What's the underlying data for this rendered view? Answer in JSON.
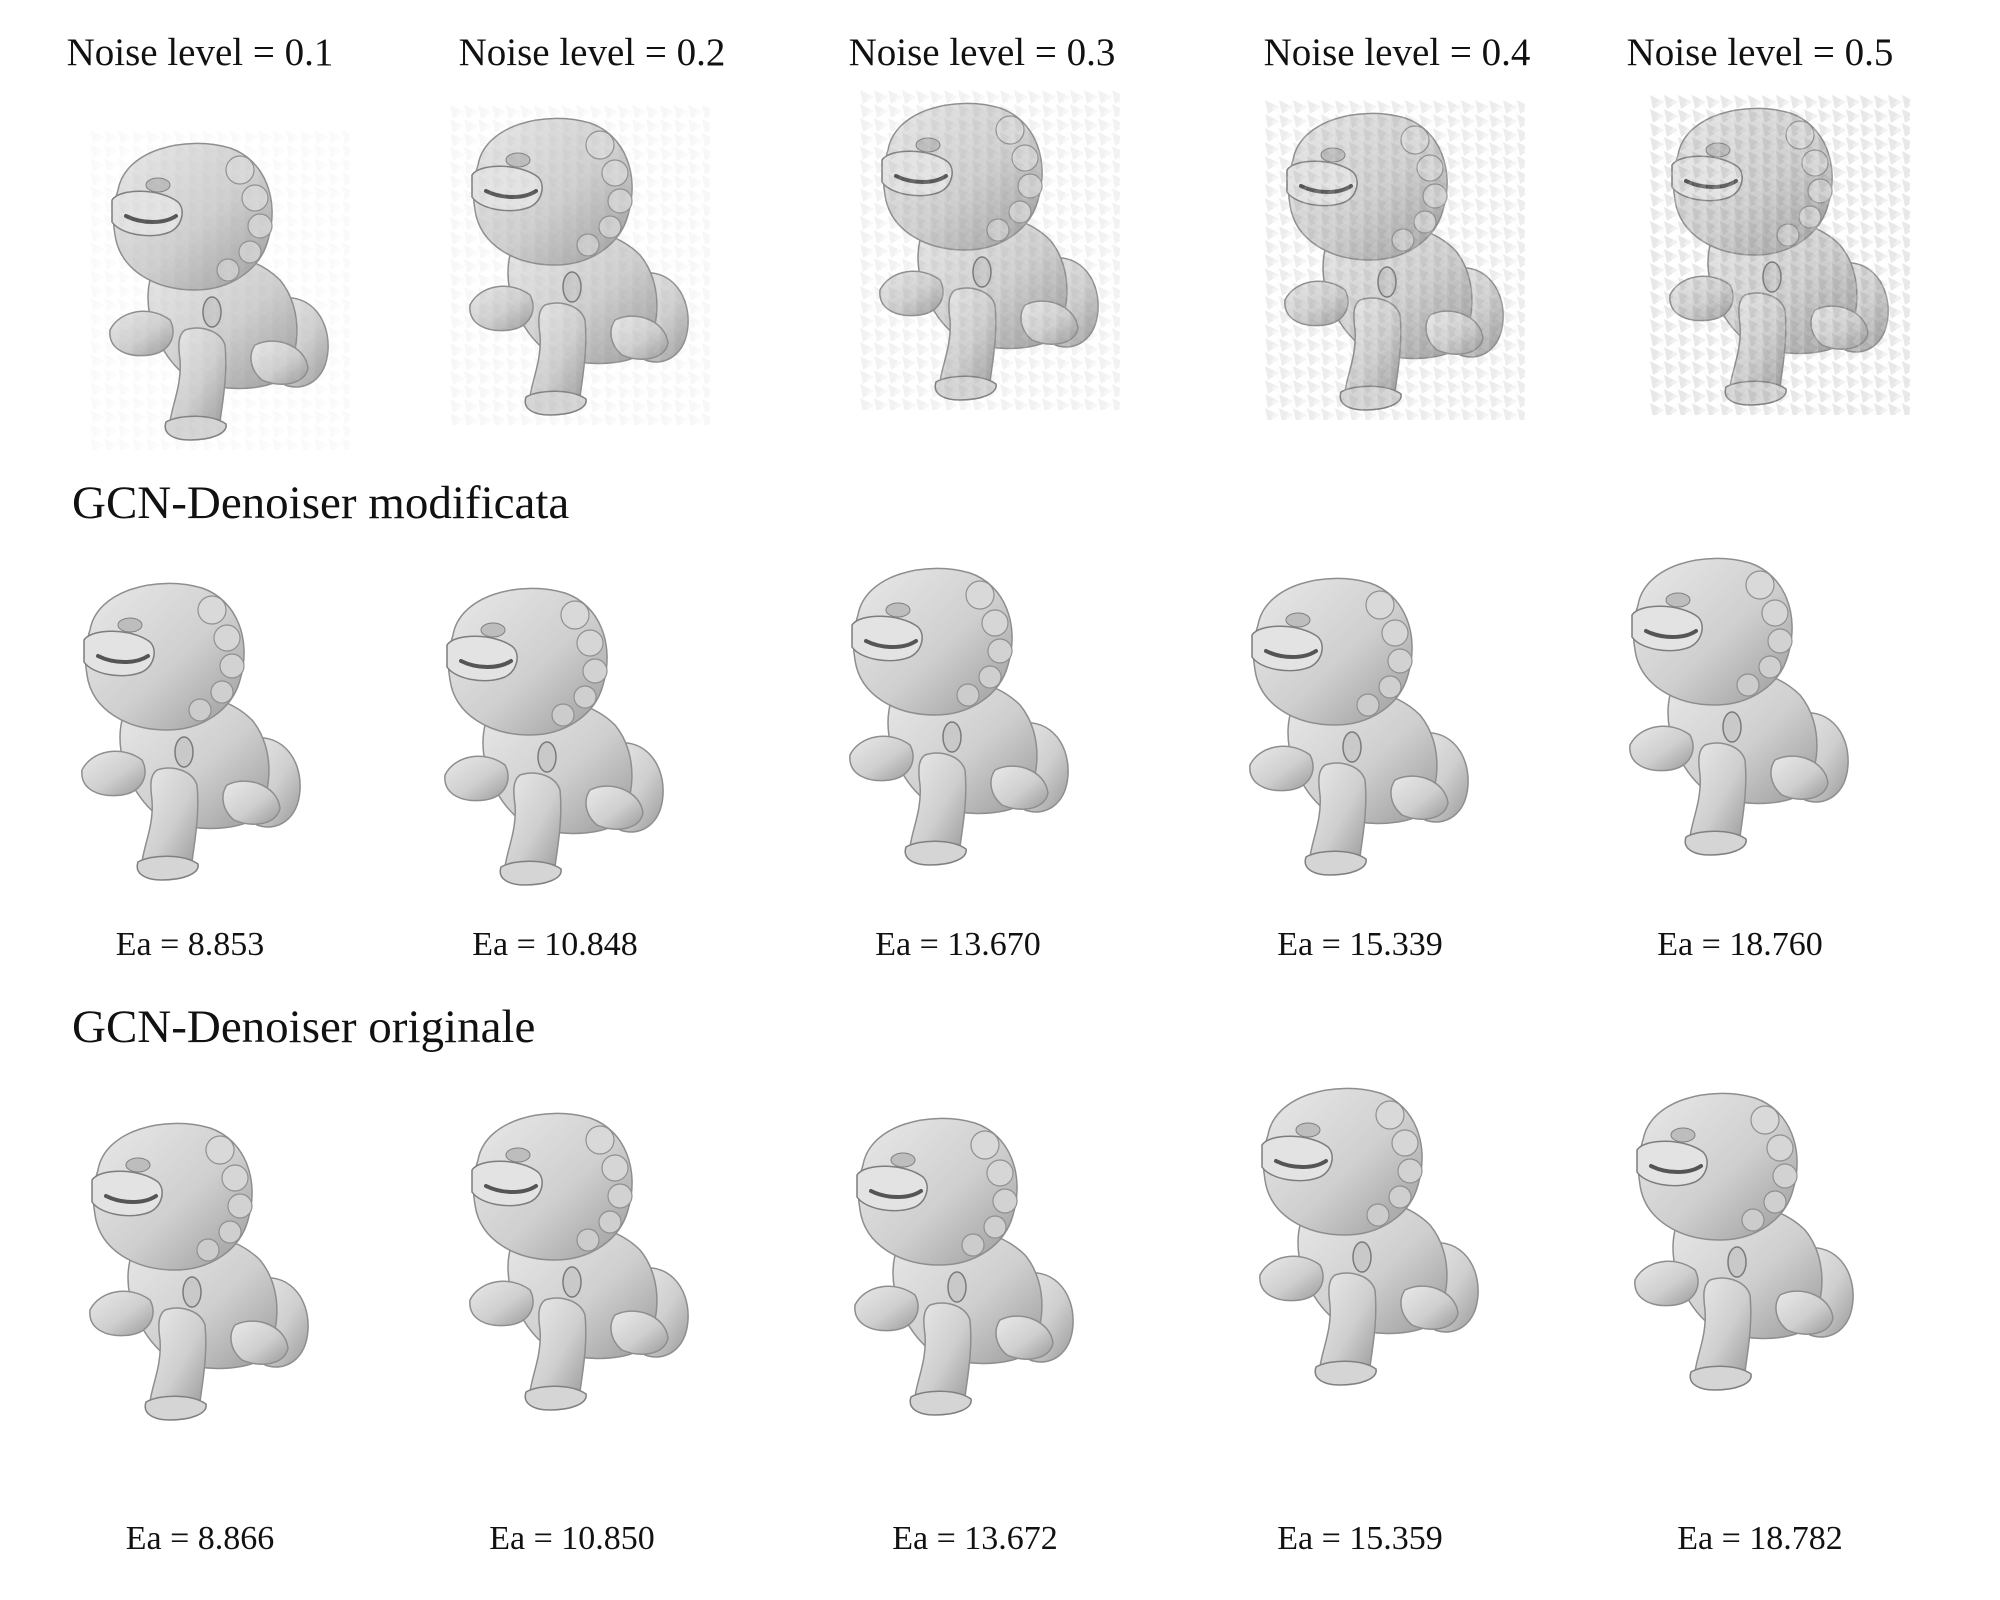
{
  "noise_row": {
    "labels": [
      "Noise level = 0.1",
      "Noise level = 0.2",
      "Noise level = 0.3",
      "Noise level = 0.4",
      "Noise level = 0.5"
    ],
    "noise_levels": [
      0.1,
      0.2,
      0.3,
      0.4,
      0.5
    ]
  },
  "modified": {
    "title": "GCN-Denoiser modificata",
    "ea_labels": [
      "Ea = 8.853",
      "Ea = 10.848",
      "Ea = 13.670",
      "Ea = 15.339",
      "Ea = 18.760"
    ]
  },
  "original": {
    "title": "GCN-Denoiser originale",
    "ea_labels": [
      "Ea = 8.866",
      "Ea = 10.850",
      "Ea = 13.672",
      "Ea = 15.359",
      "Ea = 18.782"
    ]
  },
  "colors": {
    "mesh_fill": "#d3d3d3",
    "mesh_shadow": "#8e8e8e",
    "mesh_line": "#6f6f6f"
  }
}
